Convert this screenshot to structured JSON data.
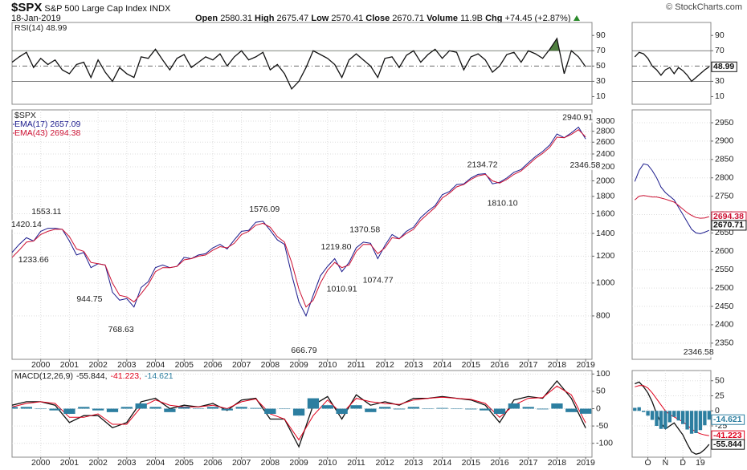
{
  "header": {
    "symbol": "$SPX",
    "name": "S&P 500 Large Cap Index",
    "exchange": "INDX",
    "date": "18-Jan-2019",
    "credit": "© StockCharts.com",
    "quote": [
      {
        "label": "Open",
        "value": "2580.31"
      },
      {
        "label": "High",
        "value": "2675.47"
      },
      {
        "label": "Low",
        "value": "2570.41"
      },
      {
        "label": "Close",
        "value": "2670.71"
      },
      {
        "label": "Volume",
        "value": "11.9B"
      },
      {
        "label": "Chg",
        "value": "+74.45 (+2.87%)"
      }
    ]
  },
  "chart_data": [
    {
      "type": "line",
      "label": "RSI(14) 48.99",
      "x": [
        1999,
        1999.25,
        1999.5,
        1999.75,
        2000,
        2000.25,
        2000.5,
        2000.75,
        2001,
        2001.25,
        2001.5,
        2001.75,
        2002,
        2002.25,
        2002.5,
        2002.75,
        2003,
        2003.25,
        2003.5,
        2003.75,
        2004,
        2004.25,
        2004.5,
        2004.75,
        2005,
        2005.25,
        2005.5,
        2005.75,
        2006,
        2006.25,
        2006.5,
        2006.75,
        2007,
        2007.25,
        2007.5,
        2007.75,
        2008,
        2008.25,
        2008.5,
        2008.75,
        2009,
        2009.25,
        2009.5,
        2009.75,
        2010,
        2010.25,
        2010.5,
        2010.75,
        2011,
        2011.25,
        2011.5,
        2011.75,
        2012,
        2012.25,
        2012.5,
        2012.75,
        2013,
        2013.25,
        2013.5,
        2013.75,
        2014,
        2014.25,
        2014.5,
        2014.75,
        2015,
        2015.25,
        2015.5,
        2015.75,
        2016,
        2016.25,
        2016.5,
        2016.75,
        2017,
        2017.25,
        2017.5,
        2017.75,
        2018,
        2018.25,
        2018.5,
        2018.75,
        2019
      ],
      "series": [
        {
          "color": "#111111",
          "values": [
            55,
            62,
            68,
            48,
            60,
            52,
            58,
            45,
            40,
            52,
            55,
            35,
            58,
            42,
            30,
            48,
            40,
            35,
            62,
            60,
            72,
            58,
            45,
            60,
            65,
            48,
            55,
            62,
            58,
            66,
            50,
            62,
            70,
            58,
            62,
            68,
            45,
            52,
            40,
            20,
            30,
            48,
            70,
            65,
            60,
            52,
            35,
            58,
            66,
            58,
            50,
            35,
            60,
            62,
            48,
            64,
            70,
            55,
            65,
            72,
            60,
            70,
            68,
            45,
            62,
            66,
            58,
            42,
            50,
            65,
            68,
            55,
            70,
            66,
            60,
            72,
            86,
            40,
            70,
            62,
            48.99
          ]
        }
      ],
      "xlim": [
        1999,
        2019.22
      ],
      "ylim": [
        0,
        107
      ],
      "yticks": [
        90,
        70,
        50,
        30,
        10
      ],
      "levels": [
        70,
        30
      ],
      "midline": 50,
      "overbought_color": "#4f7f3f",
      "legend_layout": "row"
    },
    {
      "type": "line",
      "label": "$SPX",
      "log": true,
      "grid": true,
      "legend_layout": "column",
      "x": [
        1999,
        1999.25,
        1999.5,
        1999.75,
        2000,
        2000.25,
        2000.5,
        2000.75,
        2001,
        2001.25,
        2001.5,
        2001.75,
        2002,
        2002.25,
        2002.5,
        2002.75,
        2003,
        2003.25,
        2003.5,
        2003.75,
        2004,
        2004.25,
        2004.5,
        2004.75,
        2005,
        2005.25,
        2005.5,
        2005.75,
        2006,
        2006.25,
        2006.5,
        2006.75,
        2007,
        2007.25,
        2007.5,
        2007.75,
        2008,
        2008.25,
        2008.5,
        2008.75,
        2009,
        2009.25,
        2009.5,
        2009.75,
        2010,
        2010.25,
        2010.5,
        2010.75,
        2011,
        2011.25,
        2011.5,
        2011.75,
        2012,
        2012.25,
        2012.5,
        2012.75,
        2013,
        2013.25,
        2013.5,
        2013.75,
        2014,
        2014.25,
        2014.5,
        2014.75,
        2015,
        2015.25,
        2015.5,
        2015.75,
        2016,
        2016.25,
        2016.5,
        2016.75,
        2017,
        2017.25,
        2017.5,
        2017.75,
        2018,
        2018.25,
        2018.5,
        2018.75,
        2019
      ],
      "series": [
        {
          "name": "EMA(17) 2657.09",
          "color": "#1a1a8c",
          "values": [
            1230,
            1300,
            1360,
            1330,
            1420,
            1450,
            1450,
            1440,
            1330,
            1210,
            1230,
            1110,
            1140,
            1130,
            940,
            890,
            900,
            850,
            970,
            1010,
            1110,
            1130,
            1110,
            1120,
            1190,
            1180,
            1210,
            1220,
            1270,
            1300,
            1260,
            1340,
            1420,
            1430,
            1510,
            1520,
            1430,
            1340,
            1300,
            1060,
            880,
            800,
            920,
            1050,
            1120,
            1180,
            1080,
            1150,
            1270,
            1320,
            1310,
            1180,
            1290,
            1390,
            1350,
            1420,
            1460,
            1560,
            1630,
            1690,
            1820,
            1860,
            1950,
            1960,
            2040,
            2090,
            2100,
            1960,
            1980,
            2040,
            2120,
            2160,
            2260,
            2360,
            2440,
            2550,
            2750,
            2680,
            2770,
            2880,
            2657
          ]
        },
        {
          "name": "EMA(43) 2694.38",
          "color": "#cc1133",
          "values": [
            1190,
            1250,
            1320,
            1330,
            1390,
            1420,
            1440,
            1440,
            1370,
            1260,
            1240,
            1150,
            1140,
            1130,
            1000,
            920,
            910,
            880,
            930,
            990,
            1080,
            1110,
            1110,
            1120,
            1170,
            1180,
            1200,
            1210,
            1250,
            1280,
            1270,
            1310,
            1390,
            1420,
            1480,
            1500,
            1460,
            1370,
            1320,
            1150,
            960,
            850,
            890,
            1000,
            1090,
            1150,
            1110,
            1130,
            1240,
            1300,
            1300,
            1220,
            1270,
            1360,
            1350,
            1400,
            1440,
            1530,
            1600,
            1670,
            1780,
            1840,
            1920,
            1950,
            2020,
            2070,
            2090,
            2000,
            1970,
            2020,
            2090,
            2140,
            2230,
            2330,
            2410,
            2510,
            2690,
            2680,
            2740,
            2830,
            2694
          ]
        }
      ],
      "xlim": [
        1999,
        2019.22
      ],
      "ylim": [
        596,
        3237
      ],
      "yticks": [
        3000,
        2800,
        2600,
        2400,
        2200,
        2000,
        1800,
        1600,
        1400,
        1200,
        1000,
        800
      ],
      "xticks": [
        2000,
        2001,
        2002,
        2003,
        2004,
        2005,
        2006,
        2007,
        2008,
        2009,
        2010,
        2011,
        2012,
        2013,
        2014,
        2015,
        2016,
        2017,
        2018,
        2019
      ],
      "annotations": [
        {
          "x": 1999.5,
          "value": 1420.14,
          "label": "1420.14"
        },
        {
          "x": 2000.2,
          "value": 1553.11,
          "label": "1553.11"
        },
        {
          "x": 1999.75,
          "value": 1233.66,
          "label": "1233.66"
        },
        {
          "x": 2001.7,
          "value": 944.75,
          "label": "944.75"
        },
        {
          "x": 2002.8,
          "value": 768.63,
          "label": "768.63"
        },
        {
          "x": 2007.8,
          "value": 1576.09,
          "label": "1576.09"
        },
        {
          "x": 2009.18,
          "value": 666.79,
          "label": "666.79"
        },
        {
          "x": 2010.3,
          "value": 1219.8,
          "label": "1219.80"
        },
        {
          "x": 2010.5,
          "value": 1010.91,
          "label": "1010.91"
        },
        {
          "x": 2011.3,
          "value": 1370.58,
          "label": "1370.58"
        },
        {
          "x": 2011.76,
          "value": 1074.77,
          "label": "1074.77"
        },
        {
          "x": 2015.4,
          "value": 2134.72,
          "label": "2134.72"
        },
        {
          "x": 2016.1,
          "value": 1810.1,
          "label": "1810.10"
        },
        {
          "x": 2018.72,
          "value": 2940.91,
          "label": "2940.91"
        },
        {
          "x": 2018.98,
          "value": 2346.58,
          "label": "2346.58"
        }
      ]
    },
    {
      "type": "line",
      "label": "MACD(12,26,9)",
      "legend_layout": "row",
      "grid": true,
      "x": [
        1999,
        1999.5,
        2000,
        2000.5,
        2001,
        2001.5,
        2002,
        2002.5,
        2003,
        2003.5,
        2004,
        2004.5,
        2005,
        2005.5,
        2006,
        2006.5,
        2007,
        2007.5,
        2008,
        2008.5,
        2009,
        2009.5,
        2010,
        2010.5,
        2011,
        2011.5,
        2012,
        2012.5,
        2013,
        2013.5,
        2014,
        2014.5,
        2015,
        2015.5,
        2016,
        2016.5,
        2017,
        2017.5,
        2018,
        2018.5,
        2019
      ],
      "series": [
        {
          "name": "-55.844,",
          "color": "#111111",
          "values": [
            10,
            20,
            20,
            10,
            -40,
            -20,
            -20,
            -55,
            -40,
            20,
            30,
            0,
            10,
            5,
            15,
            -5,
            25,
            30,
            -30,
            -30,
            -110,
            10,
            35,
            -30,
            40,
            10,
            20,
            10,
            30,
            30,
            35,
            30,
            25,
            10,
            -40,
            25,
            35,
            30,
            80,
            30,
            -55.844
          ]
        },
        {
          "name": "-41.223,",
          "color": "#e0001b",
          "values": [
            5,
            15,
            20,
            15,
            -25,
            -25,
            -15,
            -45,
            -45,
            5,
            25,
            10,
            5,
            5,
            10,
            0,
            20,
            28,
            -15,
            -30,
            -90,
            -20,
            25,
            -15,
            30,
            20,
            15,
            12,
            25,
            30,
            33,
            30,
            27,
            15,
            -25,
            10,
            30,
            32,
            65,
            40,
            -41.223
          ]
        },
        {
          "name": "-14.621",
          "color": "#2c7ea0",
          "style": "bar",
          "values": [
            5,
            5,
            0,
            -5,
            -15,
            5,
            -5,
            -10,
            5,
            15,
            5,
            -10,
            5,
            0,
            5,
            -5,
            5,
            2,
            -15,
            0,
            -20,
            30,
            10,
            -15,
            10,
            -10,
            5,
            -2,
            5,
            0,
            2,
            0,
            -2,
            -5,
            -15,
            15,
            5,
            -2,
            15,
            -10,
            -14.621
          ]
        }
      ],
      "xlim": [
        1999,
        2019.22
      ],
      "ylim": [
        -140,
        110
      ],
      "yticks": [
        100,
        50,
        0,
        -50,
        -100
      ],
      "xticks": [
        2000,
        2001,
        2002,
        2003,
        2004,
        2005,
        2006,
        2007,
        2008,
        2009,
        2010,
        2011,
        2012,
        2013,
        2014,
        2015,
        2016,
        2017,
        2018,
        2019
      ]
    },
    {
      "type": "line",
      "x": [
        9.25,
        9.5,
        9.75,
        10,
        10.25,
        10.5,
        10.75,
        11,
        11.25,
        11.5,
        11.75,
        12,
        12.25,
        12.5,
        12.75,
        13,
        13.25,
        13.5
      ],
      "series": [
        {
          "color": "#111111",
          "values": [
            62,
            68,
            66,
            60,
            50,
            45,
            38,
            45,
            48,
            40,
            48,
            44,
            38,
            30,
            35,
            40,
            45,
            48.99
          ]
        }
      ],
      "xlim": [
        9.1,
        13.6
      ],
      "ylim": [
        0,
        107
      ],
      "yticks": [
        90,
        70,
        50,
        30,
        10
      ],
      "levels": [
        70,
        30
      ],
      "midline": 50,
      "tags": [
        {
          "value": 48.99,
          "color": "#111111"
        }
      ]
    },
    {
      "type": "line",
      "grid": true,
      "x": [
        9.25,
        9.5,
        9.75,
        10,
        10.25,
        10.5,
        10.75,
        11,
        11.25,
        11.5,
        11.75,
        12,
        12.25,
        12.5,
        12.75,
        13,
        13.25,
        13.5
      ],
      "series": [
        {
          "color": "#1a1a8c",
          "values": [
            2790,
            2820,
            2838,
            2835,
            2820,
            2800,
            2775,
            2760,
            2750,
            2740,
            2720,
            2700,
            2680,
            2660,
            2650,
            2648,
            2652,
            2657.09
          ]
        },
        {
          "color": "#cc1133",
          "values": [
            2740,
            2750,
            2752,
            2750,
            2748,
            2748,
            2745,
            2742,
            2738,
            2734,
            2725,
            2715,
            2705,
            2698,
            2692,
            2690,
            2691,
            2694.38
          ]
        }
      ],
      "xlim": [
        9.1,
        13.6
      ],
      "ylim": [
        2306,
        2985
      ],
      "yticks": [
        2950,
        2900,
        2850,
        2800,
        2750,
        2700,
        2650,
        2600,
        2550,
        2500,
        2450,
        2400,
        2350
      ],
      "tags": [
        {
          "value": 2694.38,
          "color": "#cc1133"
        },
        {
          "value": 2670.71,
          "color": "#111111"
        }
      ],
      "annotations": [
        {
          "x": 12.9,
          "value": 2346.58,
          "label": "2346.58"
        }
      ]
    },
    {
      "type": "line",
      "grid": true,
      "x": [
        9.25,
        9.5,
        9.75,
        10,
        10.25,
        10.5,
        10.75,
        11,
        11.25,
        11.5,
        11.75,
        12,
        12.25,
        12.5,
        12.75,
        13,
        13.25,
        13.5
      ],
      "series": [
        {
          "color": "#111111",
          "values": [
            45,
            48,
            40,
            30,
            15,
            -5,
            -20,
            -30,
            -25,
            -20,
            -30,
            -40,
            -55,
            -68,
            -72,
            -70,
            -64,
            -55.844
          ]
        },
        {
          "color": "#e0001b",
          "values": [
            40,
            42,
            42,
            38,
            30,
            20,
            10,
            0,
            -6,
            -10,
            -14,
            -18,
            -24,
            -30,
            -35,
            -38,
            -40,
            -41.223
          ]
        },
        {
          "color": "#2c7ea0",
          "style": "bar",
          "values": [
            5,
            6,
            -2,
            -8,
            -15,
            -25,
            -30,
            -30,
            -19,
            -10,
            -16,
            -22,
            -31,
            -38,
            -37,
            -32,
            -24,
            -14.621
          ]
        }
      ],
      "xlim": [
        9.1,
        13.6
      ],
      "ylim": [
        -77,
        67
      ],
      "yticks": [
        50,
        25,
        0,
        -25
      ],
      "xticks": [
        {
          "value": 10,
          "label": "O"
        },
        {
          "value": 11,
          "label": "N"
        },
        {
          "value": 12,
          "label": "D"
        },
        {
          "value": 13,
          "label": "19"
        }
      ],
      "tags": [
        {
          "value": -14.621,
          "color": "#2c7ea0"
        },
        {
          "value": -41.223,
          "color": "#e0001b"
        },
        {
          "value": -55.844,
          "color": "#111111"
        }
      ]
    }
  ]
}
